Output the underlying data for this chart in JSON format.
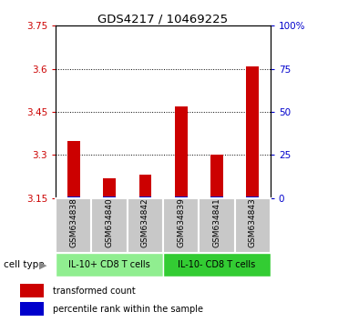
{
  "title": "GDS4217 / 10469225",
  "samples": [
    "GSM634838",
    "GSM634840",
    "GSM634842",
    "GSM634839",
    "GSM634841",
    "GSM634843"
  ],
  "red_values": [
    3.35,
    3.22,
    3.23,
    3.47,
    3.3,
    3.61
  ],
  "blue_percentiles": [
    1.0,
    1.0,
    1.0,
    1.0,
    1.0,
    1.0
  ],
  "ymin": 3.15,
  "ymax": 3.75,
  "y_ticks_left": [
    3.15,
    3.3,
    3.45,
    3.6,
    3.75
  ],
  "y_ticks_right": [
    0,
    25,
    50,
    75,
    100
  ],
  "group1_label": "IL-10+ CD8 T cells",
  "group2_label": "IL-10- CD8 T cells",
  "group1_indices": [
    0,
    1,
    2
  ],
  "group2_indices": [
    3,
    4,
    5
  ],
  "group1_color": "#90EE90",
  "group2_color": "#33CC33",
  "cell_type_label": "cell type",
  "legend_red": "transformed count",
  "legend_blue": "percentile rank within the sample",
  "red_color": "#CC0000",
  "blue_color": "#0000CC",
  "tick_color_left": "#CC0000",
  "tick_color_right": "#0000CC",
  "sample_box_color": "#C8C8C8",
  "bar_width": 0.35
}
